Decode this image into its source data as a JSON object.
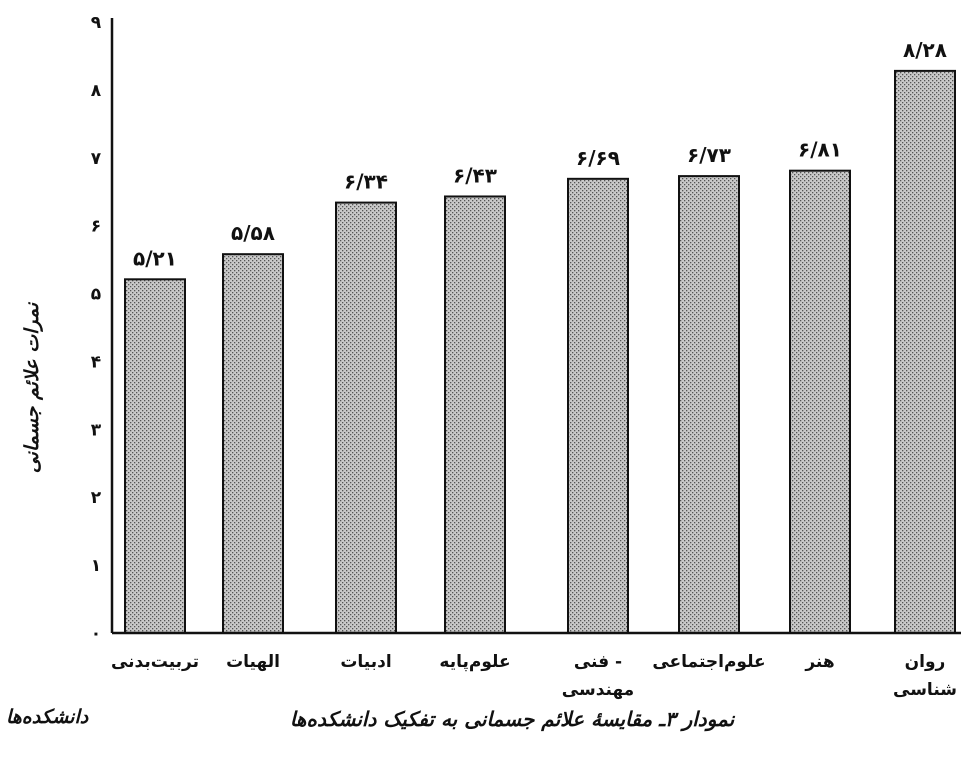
{
  "chart_data": {
    "type": "bar",
    "title": "",
    "caption": "نمودار ۳ـ مقایسهٔ علائم جسمانی به تفکیک دانشکده‌ها",
    "xlabel": "دانشکده‌ها",
    "ylabel": "نمرات علائم جسمانی",
    "ylim": [
      0,
      9
    ],
    "yticks": [
      0,
      1,
      2,
      3,
      4,
      5,
      6,
      7,
      8,
      9
    ],
    "ytick_labels": [
      "۰",
      "۱",
      "۲",
      "۳",
      "۴",
      "۵",
      "۶",
      "۷",
      "۸",
      "۹"
    ],
    "grid": false,
    "categories": [
      "تربیت‌بدنی",
      "الهیات",
      "ادبیات",
      "علوم‌پایه",
      "فنی - مهندسی",
      "علوم‌اجتماعی",
      "هنر",
      "روان شناسی"
    ],
    "category_lines": [
      [
        "تربیت‌بدنی"
      ],
      [
        "الهیات"
      ],
      [
        "ادبیات"
      ],
      [
        "علوم‌پایه"
      ],
      [
        "فنی -",
        "مهندسی"
      ],
      [
        "علوم‌اجتماعی"
      ],
      [
        "هنر"
      ],
      [
        "روان",
        "شناسی"
      ]
    ],
    "values": [
      5.21,
      5.58,
      6.34,
      6.43,
      6.69,
      6.73,
      6.81,
      8.28
    ],
    "value_labels": [
      "۵/۲۱",
      "۵/۵۸",
      "۶/۳۴",
      "۶/۴۳",
      "۶/۶۹",
      "۶/۷۳",
      "۶/۸۱",
      "۸/۲۸"
    ],
    "bar_fill": "#b8b8b8",
    "bar_stroke": "#111111"
  }
}
